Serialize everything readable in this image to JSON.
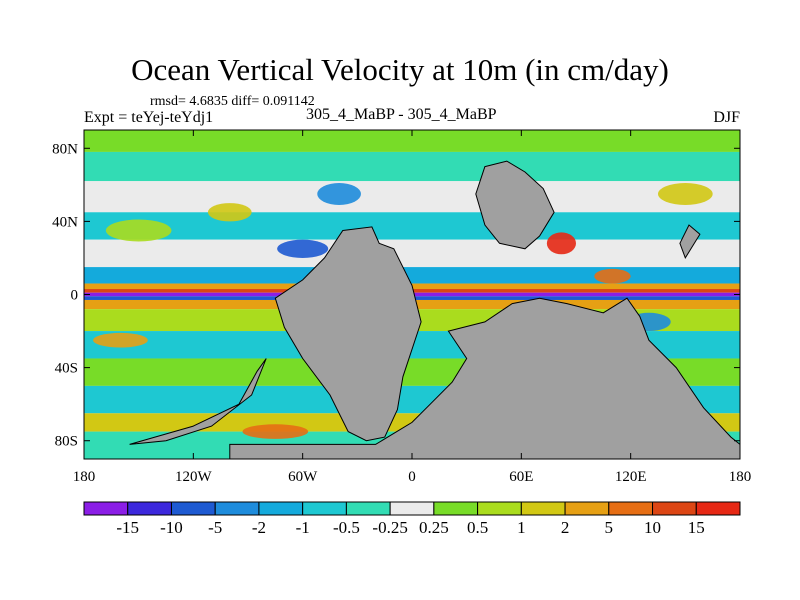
{
  "chart_data": {
    "type": "heatmap",
    "title": "Ocean Vertical Velocity at 10m (in cm/day)",
    "stats": "rmsd= 4.6835 diff= 0.091142",
    "experiment": "Expt = teYej-teYdj1",
    "comparison": "305_4_MaBP - 305_4_MaBP",
    "season": "DJF",
    "x_axis": {
      "range": [
        -180,
        180
      ],
      "tick_values": [
        -180,
        -120,
        -60,
        0,
        60,
        120,
        180
      ],
      "tick_labels": [
        "180",
        "120W",
        "60W",
        "0",
        "60E",
        "120E",
        "180"
      ]
    },
    "y_axis": {
      "range": [
        -90,
        90
      ],
      "tick_values": [
        80,
        40,
        0,
        -40,
        -80
      ],
      "tick_labels": [
        "80N",
        "40N",
        "0",
        "40S",
        "80S"
      ]
    },
    "colorbar": {
      "levels": [
        "-15",
        "-10",
        "-5",
        "-2",
        "-1",
        "-0.5",
        "-0.25",
        "0.25",
        "0.5",
        "1",
        "2",
        "5",
        "10",
        "15"
      ],
      "colors": [
        "#8b1ee6",
        "#3c28dc",
        "#1e5ad2",
        "#1e8cdc",
        "#14aadc",
        "#1ec8d2",
        "#32dcb4",
        "#ebebeb",
        "#78dc28",
        "#aadc1e",
        "#d2c814",
        "#e6a014",
        "#e66e14",
        "#dc4614",
        "#e62814"
      ]
    },
    "land_color": "#a0a0a0",
    "ocean_bands": [
      {
        "lat": [
          78,
          90
        ],
        "color_index": 8
      },
      {
        "lat": [
          62,
          78
        ],
        "color_index": 6
      },
      {
        "lat": [
          45,
          62
        ],
        "color_index": 7
      },
      {
        "lat": [
          30,
          45
        ],
        "color_index": 5
      },
      {
        "lat": [
          15,
          30
        ],
        "color_index": 7
      },
      {
        "lat": [
          6,
          15
        ],
        "color_index": 4
      },
      {
        "lat": [
          3,
          6
        ],
        "color_index": 11
      },
      {
        "lat": [
          1,
          3
        ],
        "color_index": 13
      },
      {
        "lat": [
          -1,
          1
        ],
        "color_index": 0
      },
      {
        "lat": [
          -3,
          -1
        ],
        "color_index": 2
      },
      {
        "lat": [
          -8,
          -3
        ],
        "color_index": 11
      },
      {
        "lat": [
          -20,
          -8
        ],
        "color_index": 9
      },
      {
        "lat": [
          -35,
          -20
        ],
        "color_index": 5
      },
      {
        "lat": [
          -50,
          -35
        ],
        "color_index": 8
      },
      {
        "lat": [
          -65,
          -50
        ],
        "color_index": 5
      },
      {
        "lat": [
          -75,
          -65
        ],
        "color_index": 10
      },
      {
        "lat": [
          -90,
          -75
        ],
        "color_index": 6
      }
    ],
    "land_masses": [
      [
        [
          -38,
          35
        ],
        [
          -22,
          37
        ],
        [
          -18,
          28
        ],
        [
          -10,
          25
        ],
        [
          0,
          5
        ],
        [
          5,
          -15
        ],
        [
          -5,
          -45
        ],
        [
          -8,
          -63
        ],
        [
          -15,
          -78
        ],
        [
          -25,
          -80
        ],
        [
          -35,
          -75
        ],
        [
          -45,
          -55
        ],
        [
          -60,
          -35
        ],
        [
          -70,
          -18
        ],
        [
          -75,
          -2
        ],
        [
          -60,
          8
        ],
        [
          -48,
          20
        ]
      ],
      [
        [
          40,
          70
        ],
        [
          52,
          73
        ],
        [
          62,
          67
        ],
        [
          72,
          58
        ],
        [
          78,
          45
        ],
        [
          70,
          32
        ],
        [
          62,
          25
        ],
        [
          48,
          28
        ],
        [
          40,
          38
        ],
        [
          35,
          55
        ]
      ],
      [
        [
          20,
          -20
        ],
        [
          40,
          -15
        ],
        [
          55,
          -5
        ],
        [
          70,
          -2
        ],
        [
          85,
          -5
        ],
        [
          105,
          -10
        ],
        [
          118,
          -2
        ],
        [
          125,
          -12
        ],
        [
          130,
          -25
        ],
        [
          145,
          -40
        ],
        [
          160,
          -62
        ],
        [
          175,
          -78
        ],
        [
          180,
          -82
        ],
        [
          180,
          -90
        ],
        [
          -100,
          -90
        ],
        [
          -100,
          -82
        ],
        [
          -60,
          -82
        ],
        [
          -20,
          -82
        ],
        [
          0,
          -70
        ],
        [
          10,
          -60
        ],
        [
          22,
          -48
        ],
        [
          30,
          -35
        ]
      ],
      [
        [
          -120,
          -72
        ],
        [
          -95,
          -60
        ],
        [
          -85,
          -42
        ],
        [
          -80,
          -35
        ],
        [
          -88,
          -55
        ],
        [
          -110,
          -72
        ],
        [
          -135,
          -80
        ],
        [
          -155,
          -82
        ]
      ],
      [
        [
          147,
          28
        ],
        [
          152,
          38
        ],
        [
          158,
          33
        ],
        [
          150,
          20
        ]
      ]
    ],
    "anomalies": [
      {
        "lon": -150,
        "lat": 35,
        "rx": 18,
        "ry": 6,
        "color_index": 9
      },
      {
        "lon": -100,
        "lat": 45,
        "rx": 12,
        "ry": 5,
        "color_index": 10
      },
      {
        "lon": -160,
        "lat": -25,
        "rx": 15,
        "ry": 4,
        "color_index": 11
      },
      {
        "lon": -60,
        "lat": 25,
        "rx": 14,
        "ry": 5,
        "color_index": 2
      },
      {
        "lon": 110,
        "lat": 10,
        "rx": 10,
        "ry": 4,
        "color_index": 12
      },
      {
        "lon": 130,
        "lat": -15,
        "rx": 12,
        "ry": 5,
        "color_index": 3
      },
      {
        "lon": 50,
        "lat": -40,
        "rx": 10,
        "ry": 6,
        "color_index": 12
      },
      {
        "lon": 95,
        "lat": -45,
        "rx": 14,
        "ry": 5,
        "color_index": 2
      },
      {
        "lon": -40,
        "lat": 55,
        "rx": 12,
        "ry": 6,
        "color_index": 3
      },
      {
        "lon": 150,
        "lat": 55,
        "rx": 15,
        "ry": 6,
        "color_index": 10
      },
      {
        "lon": 82,
        "lat": 28,
        "rx": 8,
        "ry": 6,
        "color_index": 14
      },
      {
        "lon": -75,
        "lat": -75,
        "rx": 18,
        "ry": 4,
        "color_index": 12
      }
    ]
  }
}
